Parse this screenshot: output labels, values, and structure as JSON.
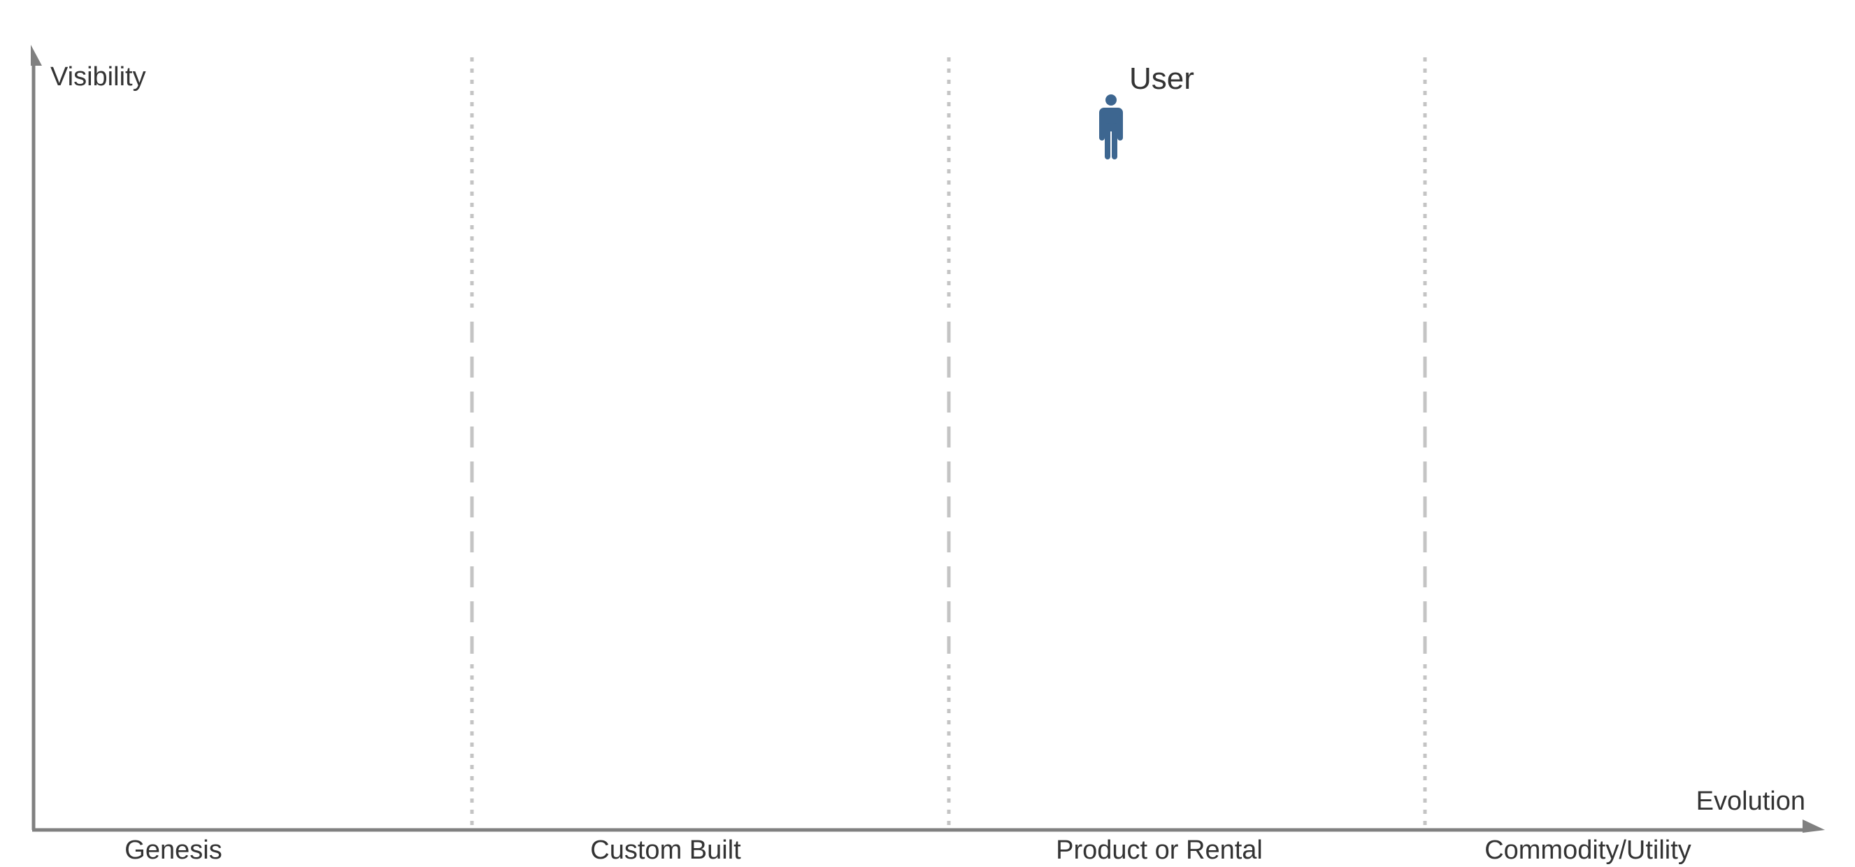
{
  "map": {
    "y_axis_label": "Visibility",
    "x_axis_label": "Evolution",
    "stages": [
      {
        "label": "Genesis"
      },
      {
        "label": "Custom Built"
      },
      {
        "label": "Product or Rental"
      },
      {
        "label": "Commodity/Utility"
      }
    ],
    "components": [
      {
        "label": "User",
        "type": "user",
        "color": "#3d6690"
      }
    ],
    "axis_color": "#808080",
    "divider_color": "#c4c4c4"
  }
}
